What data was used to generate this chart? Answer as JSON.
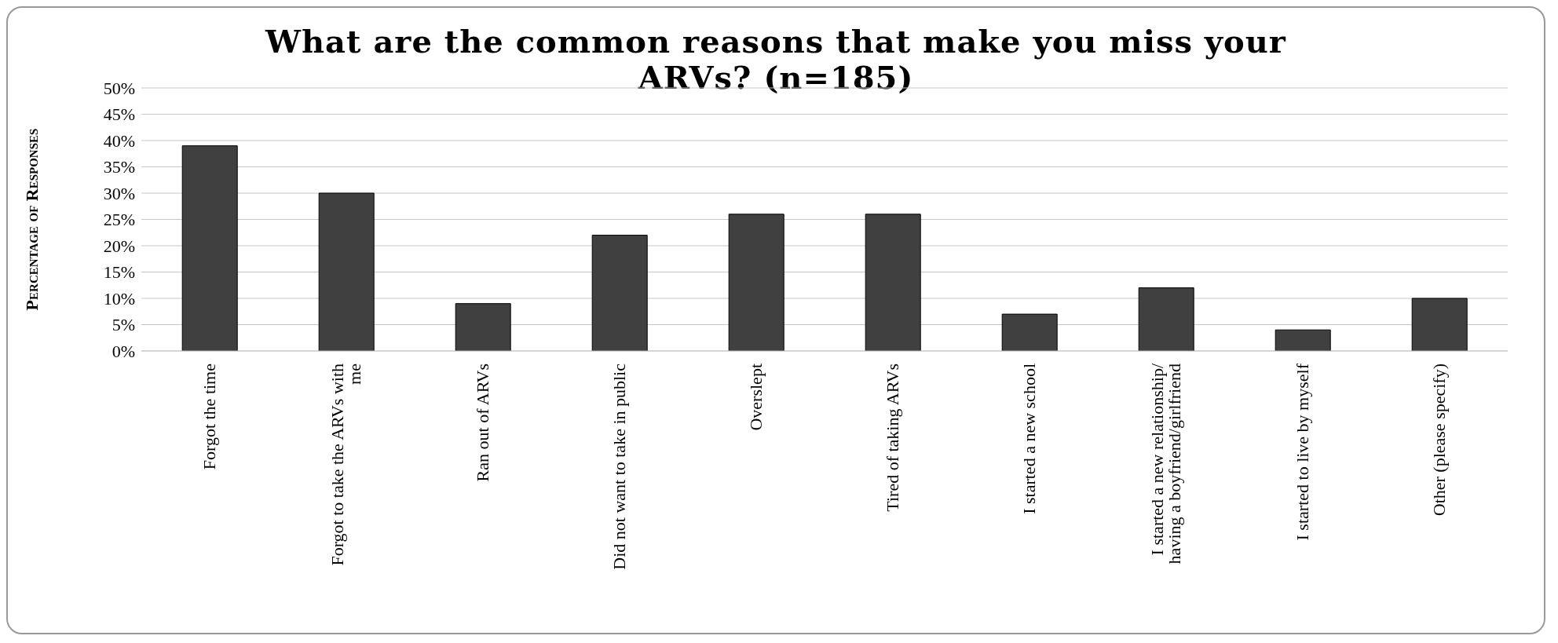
{
  "chart_data": {
    "type": "bar",
    "title": "What are the common reasons that make you miss your ARVs? (n=185)",
    "ylabel": "Percentage of Responses",
    "categories": [
      "Forgot the time",
      "Forgot to take the ARVs with\nme",
      "Ran out of ARVs",
      "Did not want to take in public",
      "Overslept",
      "Tired of taking ARVs",
      "I started a new school",
      "I started a new relationship/\nhaving a boyfriend/girlfriend",
      "I started to live by myself",
      "Other (please specify)"
    ],
    "values": [
      39,
      30,
      9,
      22,
      26,
      26,
      7,
      12,
      4,
      10
    ],
    "color": "#404040",
    "ylim": [
      0,
      50
    ],
    "yticks": [
      {
        "value": 0,
        "label": "0%"
      },
      {
        "value": 5,
        "label": "5%"
      },
      {
        "value": 10,
        "label": "10%"
      },
      {
        "value": 15,
        "label": "15%"
      },
      {
        "value": 20,
        "label": "20%"
      },
      {
        "value": 25,
        "label": "25%"
      },
      {
        "value": 30,
        "label": "30%"
      },
      {
        "value": 35,
        "label": "35%"
      },
      {
        "value": 40,
        "label": "40%"
      },
      {
        "value": 45,
        "label": "45%"
      },
      {
        "value": 50,
        "label": "50%"
      }
    ],
    "grid": "y",
    "legend": false
  }
}
